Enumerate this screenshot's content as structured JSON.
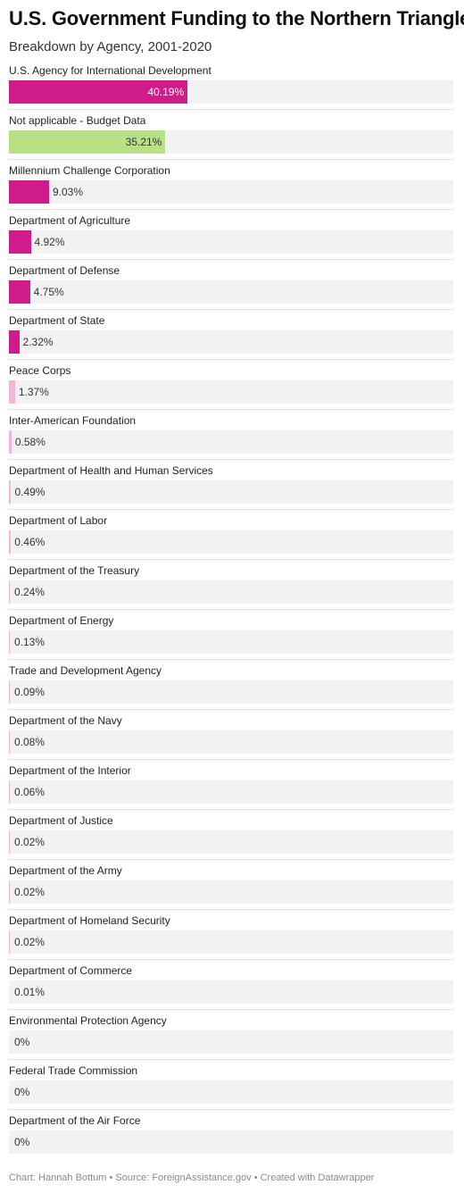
{
  "chart_data": {
    "type": "bar",
    "orientation": "horizontal",
    "title": "U.S. Government Funding to the Northern Triangle",
    "subtitle": "Breakdown by Agency, 2001-2020",
    "xlim": [
      0,
      100
    ],
    "grid": false,
    "categories": [
      "U.S. Agency for International Development",
      "Not applicable - Budget Data",
      "Millennium Challenge Corporation",
      "Department of Agriculture",
      "Department of Defense",
      "Department of State",
      "Peace Corps",
      "Inter-American Foundation",
      "Department of Health and Human Services",
      "Department of Labor",
      "Department of the Treasury",
      "Department of Energy",
      "Trade and Development Agency",
      "Department of the Navy",
      "Department of the Interior",
      "Department of Justice",
      "Department of the Army",
      "Department of Homeland Security",
      "Department of Commerce",
      "Environmental Protection Agency",
      "Federal Trade Commission",
      "Department of the Air Force"
    ],
    "values": [
      40.19,
      35.21,
      9.03,
      4.92,
      4.75,
      2.32,
      1.37,
      0.58,
      0.49,
      0.46,
      0.24,
      0.13,
      0.09,
      0.08,
      0.06,
      0.02,
      0.02,
      0.02,
      0.01,
      0,
      0,
      0
    ],
    "value_labels": [
      "40.19%",
      "35.21%",
      "9.03%",
      "4.92%",
      "4.75%",
      "2.32%",
      "1.37%",
      "0.58%",
      "0.49%",
      "0.46%",
      "0.24%",
      "0.13%",
      "0.09%",
      "0.08%",
      "0.06%",
      "0.02%",
      "0.02%",
      "0.02%",
      "0.01%",
      "0%",
      "0%",
      "0%"
    ],
    "bar_colors": [
      "#d01c8b",
      "#b8e186",
      "#d01c8b",
      "#d01c8b",
      "#d01c8b",
      "#d01c8b",
      "#f1b6da",
      "#f1b6da",
      "#f1b6da",
      "#f1b6da",
      "#f1b6da",
      "#f1b6da",
      "#f1b6da",
      "#f1b6da",
      "#f1b6da",
      "#f1b6da",
      "#f1b6da",
      "#f1b6da",
      "#f1b6da",
      "#f1b6da",
      "#f1b6da",
      "#f1b6da"
    ],
    "track_color": "#f2f2f2"
  },
  "footer": "Chart: Hannah Bottum • Source: ForeignAssistance.gov • Created with Datawrapper"
}
